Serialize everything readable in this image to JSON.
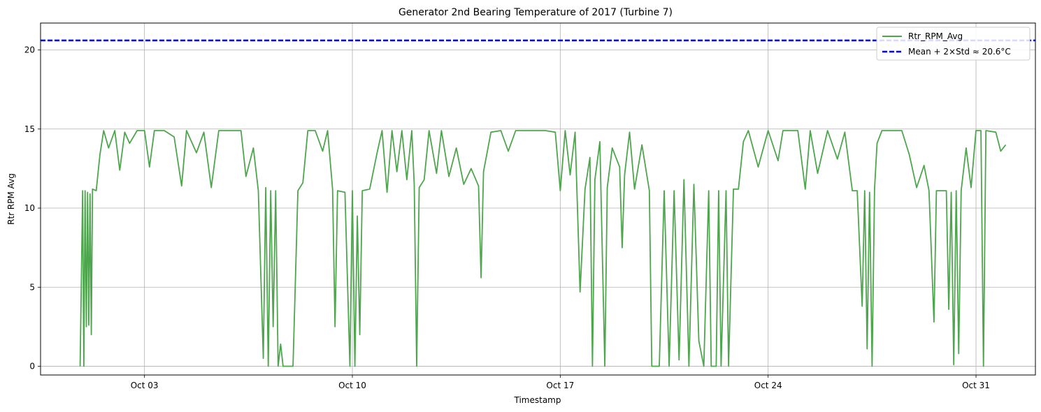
{
  "chart_data": {
    "type": "line",
    "title": "Generator 2nd Bearing Temperature of 2017 (Turbine 7)",
    "xlabel": "Timestamp",
    "ylabel": "Rtr RPM Avg",
    "xlim": [
      "2017-09-29T12:00",
      "2017-11-02T00:00"
    ],
    "ylim": [
      -0.55,
      21.7
    ],
    "grid": true,
    "legend_position": "top-right",
    "x_ticks": [
      {
        "value": "2017-10-03",
        "label": "Oct 03"
      },
      {
        "value": "2017-10-10",
        "label": "Oct 10"
      },
      {
        "value": "2017-10-17",
        "label": "Oct 17"
      },
      {
        "value": "2017-10-24",
        "label": "Oct 24"
      },
      {
        "value": "2017-10-31",
        "label": "Oct 31"
      }
    ],
    "y_ticks": [
      0,
      5,
      10,
      15,
      20
    ],
    "threshold": {
      "name": "Mean + 2×Std ≈ 20.6°C",
      "value": 20.6,
      "color": "#0000ff"
    },
    "series": [
      {
        "name": "Rtr_RPM_Avg",
        "color": "#4da64d",
        "points": [
          [
            "2017-09-30T20:00",
            0.0
          ],
          [
            "2017-09-30T22:00",
            11.1
          ],
          [
            "2017-09-30T23:00",
            0.0
          ],
          [
            "2017-10-01T00:00",
            11.1
          ],
          [
            "2017-10-01T01:00",
            2.5
          ],
          [
            "2017-10-01T02:00",
            11.0
          ],
          [
            "2017-10-01T03:00",
            2.6
          ],
          [
            "2017-10-01T04:00",
            10.9
          ],
          [
            "2017-10-01T05:00",
            2.0
          ],
          [
            "2017-10-01T06:00",
            11.2
          ],
          [
            "2017-10-01T09:00",
            11.1
          ],
          [
            "2017-10-01T12:00",
            13.4
          ],
          [
            "2017-10-01T15:00",
            14.9
          ],
          [
            "2017-10-01T19:00",
            13.8
          ],
          [
            "2017-10-02T00:00",
            14.9
          ],
          [
            "2017-10-02T04:00",
            12.4
          ],
          [
            "2017-10-02T08:00",
            14.8
          ],
          [
            "2017-10-02T12:00",
            14.1
          ],
          [
            "2017-10-02T18:00",
            14.9
          ],
          [
            "2017-10-03T00:00",
            14.9
          ],
          [
            "2017-10-03T04:00",
            12.6
          ],
          [
            "2017-10-03T08:00",
            14.9
          ],
          [
            "2017-10-03T16:00",
            14.9
          ],
          [
            "2017-10-04T00:00",
            14.5
          ],
          [
            "2017-10-04T06:00",
            11.4
          ],
          [
            "2017-10-04T10:00",
            14.9
          ],
          [
            "2017-10-04T18:00",
            13.5
          ],
          [
            "2017-10-05T00:00",
            14.8
          ],
          [
            "2017-10-05T06:00",
            11.3
          ],
          [
            "2017-10-05T12:00",
            14.9
          ],
          [
            "2017-10-06T00:00",
            14.9
          ],
          [
            "2017-10-06T06:00",
            14.9
          ],
          [
            "2017-10-06T10:00",
            12.0
          ],
          [
            "2017-10-06T16:00",
            13.8
          ],
          [
            "2017-10-06T20:00",
            11.1
          ],
          [
            "2017-10-07T00:00",
            0.5
          ],
          [
            "2017-10-07T02:00",
            11.3
          ],
          [
            "2017-10-07T04:00",
            0.0
          ],
          [
            "2017-10-07T06:00",
            11.1
          ],
          [
            "2017-10-07T08:00",
            2.5
          ],
          [
            "2017-10-07T10:00",
            11.1
          ],
          [
            "2017-10-07T12:00",
            0.0
          ],
          [
            "2017-10-07T14:00",
            1.4
          ],
          [
            "2017-10-07T16:00",
            0.0
          ],
          [
            "2017-10-08T00:00",
            0.0
          ],
          [
            "2017-10-08T04:00",
            11.1
          ],
          [
            "2017-10-08T08:00",
            11.6
          ],
          [
            "2017-10-08T12:00",
            14.9
          ],
          [
            "2017-10-08T18:00",
            14.9
          ],
          [
            "2017-10-09T00:00",
            13.6
          ],
          [
            "2017-10-09T04:00",
            14.9
          ],
          [
            "2017-10-09T08:00",
            11.2
          ],
          [
            "2017-10-09T10:00",
            2.5
          ],
          [
            "2017-10-09T12:00",
            11.1
          ],
          [
            "2017-10-09T18:00",
            11.0
          ],
          [
            "2017-10-09T22:00",
            0.0
          ],
          [
            "2017-10-10T00:00",
            11.1
          ],
          [
            "2017-10-10T02:00",
            0.0
          ],
          [
            "2017-10-10T04:00",
            9.5
          ],
          [
            "2017-10-10T06:00",
            2.0
          ],
          [
            "2017-10-10T08:00",
            11.1
          ],
          [
            "2017-10-10T14:00",
            11.2
          ],
          [
            "2017-10-10T20:00",
            13.5
          ],
          [
            "2017-10-11T00:00",
            14.9
          ],
          [
            "2017-10-11T04:00",
            11.0
          ],
          [
            "2017-10-11T08:00",
            14.9
          ],
          [
            "2017-10-11T12:00",
            12.3
          ],
          [
            "2017-10-11T16:00",
            14.9
          ],
          [
            "2017-10-11T20:00",
            11.8
          ],
          [
            "2017-10-12T00:00",
            14.9
          ],
          [
            "2017-10-12T02:00",
            11.5
          ],
          [
            "2017-10-12T04:00",
            0.0
          ],
          [
            "2017-10-12T06:00",
            11.3
          ],
          [
            "2017-10-12T10:00",
            11.8
          ],
          [
            "2017-10-12T14:00",
            14.9
          ],
          [
            "2017-10-12T20:00",
            12.2
          ],
          [
            "2017-10-13T00:00",
            14.9
          ],
          [
            "2017-10-13T06:00",
            12.0
          ],
          [
            "2017-10-13T12:00",
            13.8
          ],
          [
            "2017-10-13T18:00",
            11.5
          ],
          [
            "2017-10-14T00:00",
            12.5
          ],
          [
            "2017-10-14T06:00",
            11.4
          ],
          [
            "2017-10-14T08:00",
            5.6
          ],
          [
            "2017-10-14T10:00",
            12.3
          ],
          [
            "2017-10-14T16:00",
            14.8
          ],
          [
            "2017-10-15T00:00",
            14.9
          ],
          [
            "2017-10-15T06:00",
            13.6
          ],
          [
            "2017-10-15T12:00",
            14.9
          ],
          [
            "2017-10-16T00:00",
            14.9
          ],
          [
            "2017-10-16T12:00",
            14.9
          ],
          [
            "2017-10-16T20:00",
            14.8
          ],
          [
            "2017-10-17T00:00",
            11.1
          ],
          [
            "2017-10-17T04:00",
            14.9
          ],
          [
            "2017-10-17T08:00",
            12.1
          ],
          [
            "2017-10-17T12:00",
            14.8
          ],
          [
            "2017-10-17T16:00",
            4.7
          ],
          [
            "2017-10-17T20:00",
            11.2
          ],
          [
            "2017-10-18T00:00",
            13.2
          ],
          [
            "2017-10-18T02:00",
            0.0
          ],
          [
            "2017-10-18T04:00",
            11.8
          ],
          [
            "2017-10-18T08:00",
            14.2
          ],
          [
            "2017-10-18T12:00",
            0.0
          ],
          [
            "2017-10-18T14:00",
            11.3
          ],
          [
            "2017-10-18T18:00",
            13.8
          ],
          [
            "2017-10-19T00:00",
            12.6
          ],
          [
            "2017-10-19T02:00",
            7.5
          ],
          [
            "2017-10-19T04:00",
            12.1
          ],
          [
            "2017-10-19T08:00",
            14.8
          ],
          [
            "2017-10-19T12:00",
            11.2
          ],
          [
            "2017-10-19T18:00",
            14.0
          ],
          [
            "2017-10-20T00:00",
            11.1
          ],
          [
            "2017-10-20T02:00",
            0.0
          ],
          [
            "2017-10-20T08:00",
            0.0
          ],
          [
            "2017-10-20T12:00",
            11.1
          ],
          [
            "2017-10-20T16:00",
            0.0
          ],
          [
            "2017-10-20T20:00",
            11.1
          ],
          [
            "2017-10-21T00:00",
            0.4
          ],
          [
            "2017-10-21T04:00",
            11.8
          ],
          [
            "2017-10-21T08:00",
            0.0
          ],
          [
            "2017-10-21T12:00",
            11.5
          ],
          [
            "2017-10-21T16:00",
            1.6
          ],
          [
            "2017-10-21T20:00",
            0.0
          ],
          [
            "2017-10-22T00:00",
            11.1
          ],
          [
            "2017-10-22T02:00",
            0.0
          ],
          [
            "2017-10-22T06:00",
            0.0
          ],
          [
            "2017-10-22T08:00",
            11.1
          ],
          [
            "2017-10-22T10:00",
            0.0
          ],
          [
            "2017-10-22T14:00",
            11.1
          ],
          [
            "2017-10-22T16:00",
            0.0
          ],
          [
            "2017-10-22T20:00",
            11.2
          ],
          [
            "2017-10-23T00:00",
            11.2
          ],
          [
            "2017-10-23T04:00",
            14.2
          ],
          [
            "2017-10-23T08:00",
            14.9
          ],
          [
            "2017-10-23T16:00",
            12.6
          ],
          [
            "2017-10-24T00:00",
            14.9
          ],
          [
            "2017-10-24T08:00",
            13.0
          ],
          [
            "2017-10-24T12:00",
            14.9
          ],
          [
            "2017-10-25T00:00",
            14.9
          ],
          [
            "2017-10-25T06:00",
            11.2
          ],
          [
            "2017-10-25T10:00",
            14.9
          ],
          [
            "2017-10-25T16:00",
            12.2
          ],
          [
            "2017-10-26T00:00",
            14.9
          ],
          [
            "2017-10-26T08:00",
            13.1
          ],
          [
            "2017-10-26T14:00",
            14.8
          ],
          [
            "2017-10-26T20:00",
            11.1
          ],
          [
            "2017-10-27T00:00",
            11.1
          ],
          [
            "2017-10-27T04:00",
            3.8
          ],
          [
            "2017-10-27T06:00",
            11.1
          ],
          [
            "2017-10-27T08:00",
            1.1
          ],
          [
            "2017-10-27T10:00",
            11.0
          ],
          [
            "2017-10-27T12:00",
            0.0
          ],
          [
            "2017-10-27T14:00",
            11.2
          ],
          [
            "2017-10-27T16:00",
            14.1
          ],
          [
            "2017-10-27T20:00",
            14.9
          ],
          [
            "2017-10-28T08:00",
            14.9
          ],
          [
            "2017-10-28T12:00",
            14.9
          ],
          [
            "2017-10-28T18:00",
            13.4
          ],
          [
            "2017-10-29T00:00",
            11.3
          ],
          [
            "2017-10-29T06:00",
            12.7
          ],
          [
            "2017-10-29T10:00",
            11.1
          ],
          [
            "2017-10-29T14:00",
            2.8
          ],
          [
            "2017-10-29T16:00",
            11.1
          ],
          [
            "2017-10-30T00:00",
            11.1
          ],
          [
            "2017-10-30T02:00",
            3.6
          ],
          [
            "2017-10-30T04:00",
            11.0
          ],
          [
            "2017-10-30T06:00",
            0.1
          ],
          [
            "2017-10-30T08:00",
            11.1
          ],
          [
            "2017-10-30T10:00",
            0.8
          ],
          [
            "2017-10-30T12:00",
            11.1
          ],
          [
            "2017-10-30T16:00",
            13.8
          ],
          [
            "2017-10-30T20:00",
            11.3
          ],
          [
            "2017-10-31T00:00",
            14.9
          ],
          [
            "2017-10-31T04:00",
            14.9
          ],
          [
            "2017-10-31T06:00",
            0.0
          ],
          [
            "2017-10-31T08:00",
            14.9
          ],
          [
            "2017-10-31T16:00",
            14.8
          ],
          [
            "2017-10-31T20:00",
            13.6
          ],
          [
            "2017-11-01T00:00",
            14.0
          ]
        ]
      }
    ]
  }
}
